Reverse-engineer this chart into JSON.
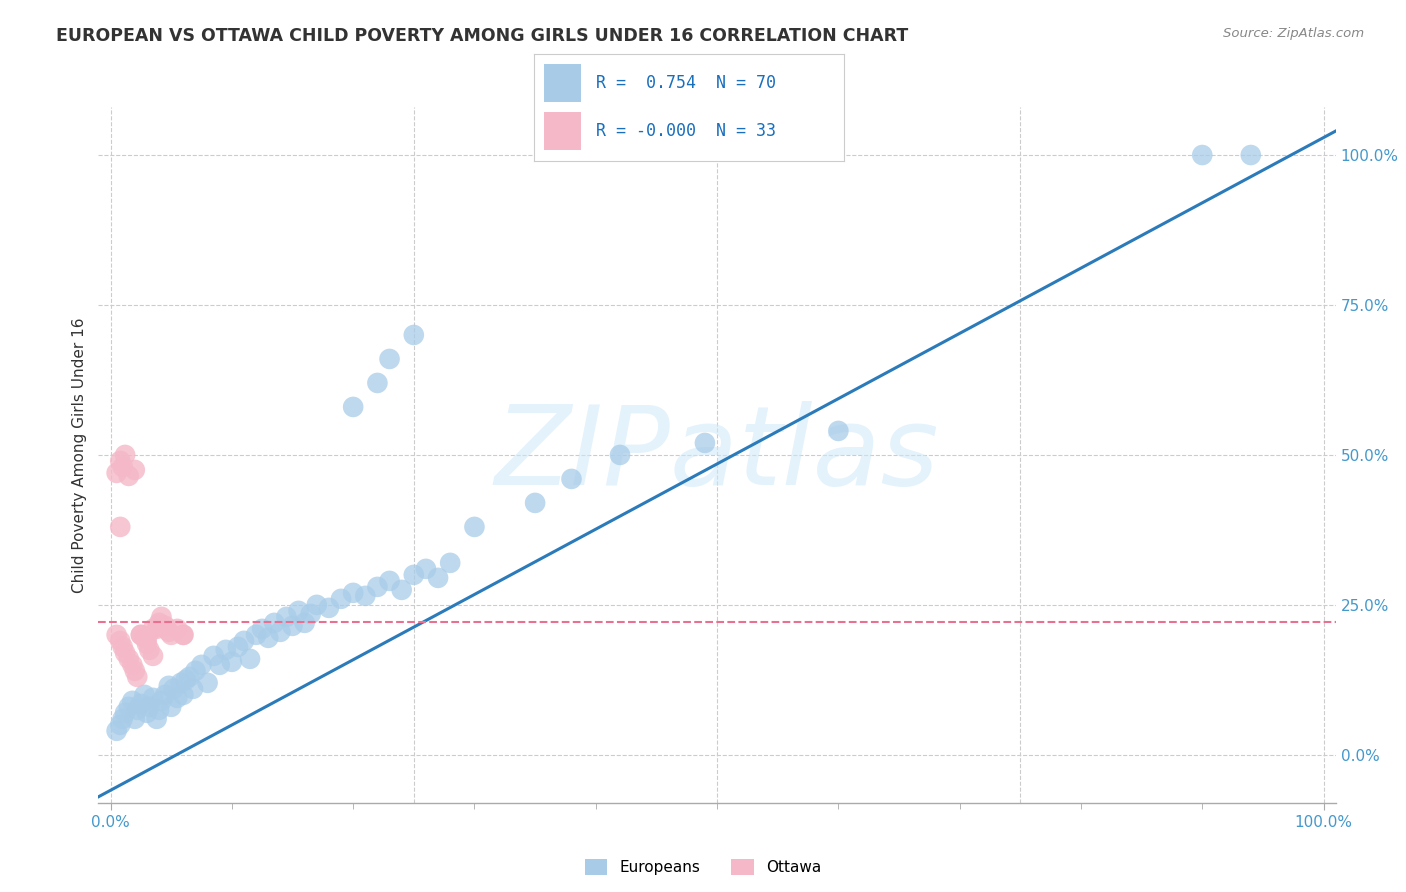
{
  "title": "EUROPEAN VS OTTAWA CHILD POVERTY AMONG GIRLS UNDER 16 CORRELATION CHART",
  "source": "Source: ZipAtlas.com",
  "ylabel": "Child Poverty Among Girls Under 16",
  "watermark": "ZIPatlas",
  "legend_blue_r": "0.754",
  "legend_blue_n": "70",
  "legend_pink_r": "-0.000",
  "legend_pink_n": "33",
  "legend_blue_label": "Europeans",
  "legend_pink_label": "Ottawa",
  "blue_color": "#a8cce8",
  "pink_color": "#f4b8c8",
  "trend_blue_color": "#2b7bba",
  "trend_pink_color": "#e87090",
  "background_color": "#ffffff",
  "grid_color": "#cccccc",
  "xlim": [
    -0.01,
    1.01
  ],
  "ylim": [
    -0.08,
    1.08
  ],
  "ytick_vals": [
    0.0,
    0.25,
    0.5,
    0.75,
    1.0
  ],
  "ytick_labels": [
    "0.0%",
    "25.0%",
    "50.0%",
    "75.0%",
    "100.0%"
  ],
  "xtick_edge_vals": [
    0.0,
    1.0
  ],
  "xtick_edge_labels": [
    "0.0%",
    "100.0%"
  ],
  "blue_x": [
    0.005,
    0.008,
    0.01,
    0.012,
    0.015,
    0.018,
    0.02,
    0.022,
    0.025,
    0.028,
    0.03,
    0.032,
    0.035,
    0.038,
    0.04,
    0.042,
    0.045,
    0.048,
    0.05,
    0.052,
    0.055,
    0.058,
    0.06,
    0.062,
    0.065,
    0.068,
    0.07,
    0.075,
    0.08,
    0.085,
    0.09,
    0.095,
    0.1,
    0.105,
    0.11,
    0.115,
    0.12,
    0.125,
    0.13,
    0.135,
    0.14,
    0.145,
    0.15,
    0.155,
    0.16,
    0.165,
    0.17,
    0.18,
    0.19,
    0.2,
    0.21,
    0.22,
    0.23,
    0.24,
    0.25,
    0.26,
    0.27,
    0.28,
    0.2,
    0.22,
    0.23,
    0.25,
    0.3,
    0.35,
    0.38,
    0.42,
    0.49,
    0.6,
    0.9,
    0.94
  ],
  "blue_y": [
    0.04,
    0.05,
    0.06,
    0.07,
    0.08,
    0.09,
    0.06,
    0.075,
    0.085,
    0.1,
    0.07,
    0.08,
    0.095,
    0.06,
    0.075,
    0.09,
    0.1,
    0.115,
    0.08,
    0.11,
    0.095,
    0.12,
    0.1,
    0.125,
    0.13,
    0.11,
    0.14,
    0.15,
    0.12,
    0.165,
    0.15,
    0.175,
    0.155,
    0.18,
    0.19,
    0.16,
    0.2,
    0.21,
    0.195,
    0.22,
    0.205,
    0.23,
    0.215,
    0.24,
    0.22,
    0.235,
    0.25,
    0.245,
    0.26,
    0.27,
    0.265,
    0.28,
    0.29,
    0.275,
    0.3,
    0.31,
    0.295,
    0.32,
    0.58,
    0.62,
    0.66,
    0.7,
    0.38,
    0.42,
    0.46,
    0.5,
    0.52,
    0.54,
    1.0,
    1.0
  ],
  "pink_x": [
    0.005,
    0.008,
    0.01,
    0.012,
    0.015,
    0.018,
    0.02,
    0.022,
    0.025,
    0.028,
    0.03,
    0.032,
    0.035,
    0.038,
    0.04,
    0.042,
    0.045,
    0.048,
    0.05,
    0.055,
    0.06,
    0.005,
    0.008,
    0.01,
    0.012,
    0.015,
    0.02,
    0.025,
    0.03,
    0.035,
    0.04,
    0.06,
    0.008
  ],
  "pink_y": [
    0.2,
    0.19,
    0.18,
    0.17,
    0.16,
    0.15,
    0.14,
    0.13,
    0.2,
    0.195,
    0.185,
    0.175,
    0.165,
    0.21,
    0.22,
    0.23,
    0.215,
    0.205,
    0.2,
    0.21,
    0.2,
    0.47,
    0.49,
    0.48,
    0.5,
    0.465,
    0.475,
    0.2,
    0.195,
    0.21,
    0.215,
    0.2,
    0.38
  ],
  "blue_trend_x": [
    -0.01,
    1.01
  ],
  "blue_trend_y": [
    -0.07,
    1.04
  ],
  "pink_trend_y": 0.222
}
